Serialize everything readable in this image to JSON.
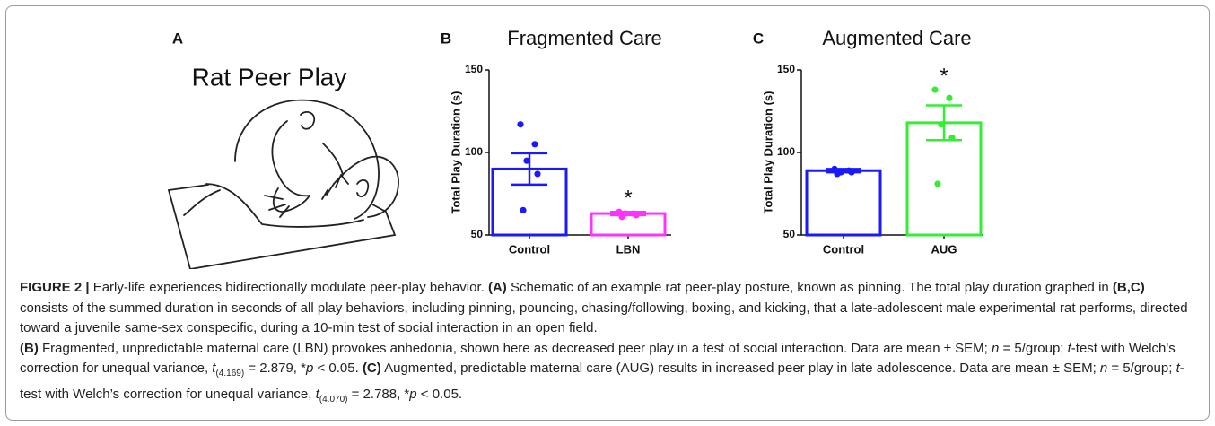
{
  "panel_a": {
    "label": "A",
    "title": "Rat Peer Play"
  },
  "chart_data": [
    {
      "type": "bar",
      "panel": "B",
      "title": "Fragmented Care",
      "ylabel": "Total Play Duration (s)",
      "categories": [
        "Control",
        "LBN"
      ],
      "values": [
        90,
        63
      ],
      "errors": [
        9.5,
        1
      ],
      "colors": [
        "#1a1aff",
        "#ff33ff"
      ],
      "points": [
        [
          117,
          105,
          95,
          87,
          65
        ],
        [
          64,
          63,
          63,
          62,
          61
        ]
      ],
      "significance": "*",
      "ylim": [
        50,
        150
      ],
      "yticks": [
        50,
        100,
        150
      ]
    },
    {
      "type": "bar",
      "panel": "C",
      "title": "Augmented Care",
      "ylabel": "Total Play Duration (s)",
      "categories": [
        "Control",
        "AUG"
      ],
      "values": [
        89,
        118
      ],
      "errors": [
        1,
        10.5
      ],
      "colors": [
        "#1a1aff",
        "#33ee33"
      ],
      "points": [
        [
          90,
          89,
          88,
          88,
          87
        ],
        [
          138,
          133,
          117,
          109,
          81
        ]
      ],
      "significance": "*",
      "ylim": [
        50,
        150
      ],
      "yticks": [
        50,
        100,
        150
      ]
    }
  ],
  "caption": {
    "paragraphs": [
      [
        {
          "t": "FIGURE 2 |",
          "s": "b"
        },
        {
          "t": " Early-life experiences bidirectionally modulate peer-play behavior. ",
          "s": "n"
        },
        {
          "t": "(A)",
          "s": "b"
        },
        {
          "t": " Schematic of an example rat peer-play posture, known as pinning. The total play duration graphed in ",
          "s": "n"
        },
        {
          "t": "(B,C)",
          "s": "b"
        },
        {
          "t": " consists of the summed duration in seconds of all play behaviors, including pinning, pouncing, chasing/following, boxing, and kicking, that a late-adolescent male experimental rat performs, directed toward a juvenile same-sex conspecific, during a 10-min test of social interaction in an open field.",
          "s": "n"
        }
      ],
      [
        {
          "t": "(B)",
          "s": "b"
        },
        {
          "t": " Fragmented, unpredictable maternal care (LBN) provokes anhedonia, shown here as decreased peer play in a test of social interaction. Data are mean ± SEM; ",
          "s": "n"
        },
        {
          "t": "n",
          "s": "i"
        },
        {
          "t": " = 5/group; ",
          "s": "n"
        },
        {
          "t": "t",
          "s": "i"
        },
        {
          "t": "-test with Welch's correction for unequal variance, ",
          "s": "n"
        },
        {
          "t": "t",
          "s": "i"
        },
        {
          "t": "(4.169)",
          "s": "sub"
        },
        {
          "t": " = 2.879, *",
          "s": "n"
        },
        {
          "t": "p",
          "s": "i"
        },
        {
          "t": " < 0.05. ",
          "s": "n"
        },
        {
          "t": "(C)",
          "s": "b"
        },
        {
          "t": " Augmented, predictable maternal care (AUG) results in increased peer play in late adolescence. Data are mean ± SEM; ",
          "s": "n"
        },
        {
          "t": "n",
          "s": "i"
        },
        {
          "t": " = 5/group; ",
          "s": "n"
        },
        {
          "t": "t",
          "s": "i"
        },
        {
          "t": "-test with Welch’s correction for unequal variance, ",
          "s": "n"
        },
        {
          "t": "t",
          "s": "i"
        },
        {
          "t": "(4.070)",
          "s": "sub"
        },
        {
          "t": " = 2.788, *",
          "s": "n"
        },
        {
          "t": "p",
          "s": "i"
        },
        {
          "t": " < 0.05.",
          "s": "n"
        }
      ]
    ]
  }
}
